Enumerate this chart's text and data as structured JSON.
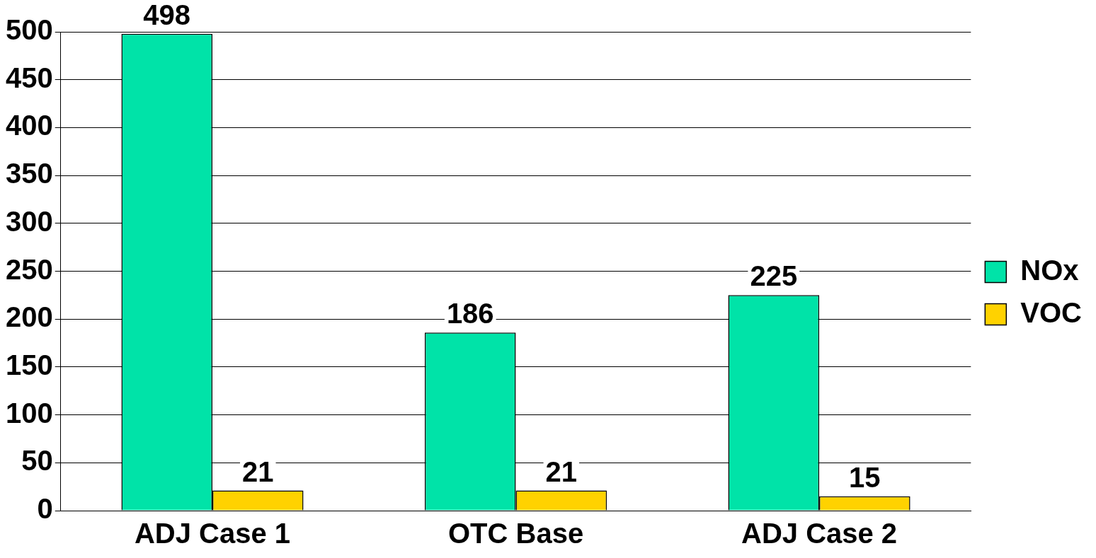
{
  "chart_data": {
    "type": "bar",
    "categories": [
      "ADJ Case 1",
      "OTC Base",
      "ADJ Case 2"
    ],
    "series": [
      {
        "name": "NOx",
        "color": "#00e3a8",
        "values": [
          498,
          186,
          225
        ]
      },
      {
        "name": "VOC",
        "color": "#ffd200",
        "values": [
          21,
          21,
          15
        ]
      }
    ],
    "ylim": [
      0,
      500
    ],
    "yticks": [
      0,
      50,
      100,
      150,
      200,
      250,
      300,
      350,
      400,
      450,
      500
    ],
    "grid": "y",
    "legend": "right",
    "data_labels": true
  }
}
